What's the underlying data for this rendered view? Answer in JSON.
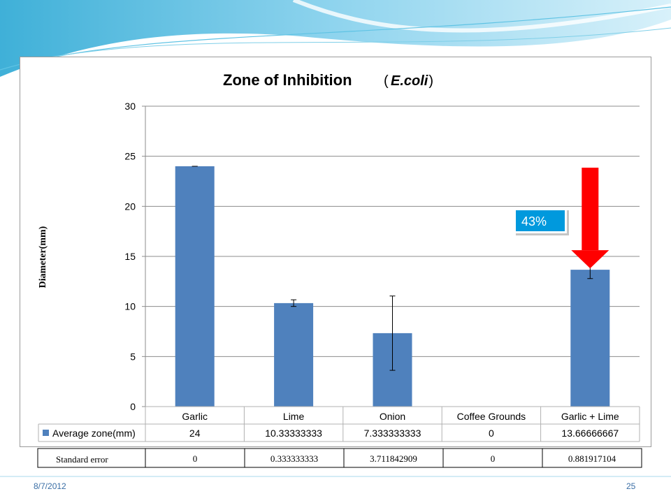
{
  "slide": {
    "date": "8/7/2012",
    "page_number": "25"
  },
  "chart_data": {
    "type": "bar",
    "title": "Zone of Inhibition",
    "subtitle": "E.coli",
    "ylabel": "Diameter(mm)",
    "xlabel": "",
    "ylim": [
      0,
      30
    ],
    "yticks": [
      0,
      5,
      10,
      15,
      20,
      25,
      30
    ],
    "grid": true,
    "categories": [
      "Garlic",
      "Lime",
      "Onion",
      "Coffee Grounds",
      "Garlic + Lime"
    ],
    "series": [
      {
        "name": "Average zone(mm)",
        "color": "#4f81bd",
        "values": [
          24,
          10.33333333,
          7.333333333,
          0,
          13.66666667
        ],
        "labels": [
          "24",
          "10.33333333",
          "7.333333333",
          "0",
          "13.66666667"
        ]
      }
    ],
    "error_bars": [
      0,
      0.333333333,
      3.711842909,
      0,
      0.881917104
    ],
    "data_table": true,
    "standard_error_row": {
      "label": "Standard error",
      "values": [
        "0",
        "0.333333333",
        "3.711842909",
        "0",
        "0.881917104"
      ]
    },
    "annotation": {
      "text": "43%",
      "arrow_color": "#ff0000",
      "box_color": "#0099dd",
      "target_category": "Garlic + Lime"
    }
  }
}
